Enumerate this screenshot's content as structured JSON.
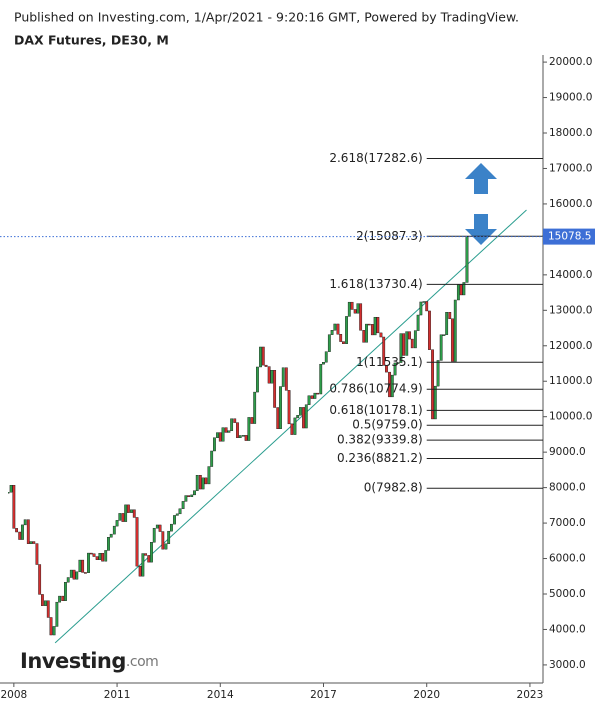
{
  "header": {
    "published": "Published on Investing.com, 1/Apr/2021 - 9:20:16 GMT, Powered by TradingView.",
    "logo_main": "Investing",
    "logo_suffix": ".com"
  },
  "chart_data": {
    "type": "candlestick",
    "title": "DAX Futures, DE30, M",
    "up_color": "#2e9d4a",
    "down_color": "#d32f2f",
    "xlim": [
      2007.83,
      2023.38
    ],
    "xticks": [
      2008,
      2011,
      2014,
      2017,
      2020,
      2023
    ],
    "ylim": [
      2490,
      20200
    ],
    "yticks": [
      {
        "value": 3000,
        "label": "3000.0"
      },
      {
        "value": 4000,
        "label": "4000.0"
      },
      {
        "value": 5000,
        "label": "5000.0"
      },
      {
        "value": 6000,
        "label": "6000.0"
      },
      {
        "value": 7000,
        "label": "7000.0"
      },
      {
        "value": 8000,
        "label": "8000.0"
      },
      {
        "value": 9000,
        "label": "9000.0"
      },
      {
        "value": 10000,
        "label": "10000.0"
      },
      {
        "value": 11000,
        "label": "11000.0"
      },
      {
        "value": 12000,
        "label": "12000.0"
      },
      {
        "value": 13000,
        "label": "13000.0"
      },
      {
        "value": 14000,
        "label": "14000.0"
      },
      {
        "value": 15000,
        "label": "15000.0"
      },
      {
        "value": 16000,
        "label": "16000.0"
      },
      {
        "value": 17000,
        "label": "17000.0"
      },
      {
        "value": 18000,
        "label": "18000.0"
      },
      {
        "value": 19000,
        "label": "19000.0"
      },
      {
        "value": 20000,
        "label": "20000.0"
      }
    ],
    "x": [
      2007.83,
      2007.92,
      2008.0,
      2008.08,
      2008.17,
      2008.25,
      2008.33,
      2008.42,
      2008.5,
      2008.58,
      2008.67,
      2008.75,
      2008.83,
      2008.92,
      2009.0,
      2009.08,
      2009.17,
      2009.25,
      2009.33,
      2009.42,
      2009.5,
      2009.58,
      2009.67,
      2009.75,
      2009.83,
      2009.92,
      2010.0,
      2010.08,
      2010.17,
      2010.25,
      2010.33,
      2010.42,
      2010.5,
      2010.58,
      2010.67,
      2010.75,
      2010.83,
      2010.92,
      2011.0,
      2011.08,
      2011.17,
      2011.25,
      2011.33,
      2011.42,
      2011.5,
      2011.58,
      2011.67,
      2011.75,
      2011.83,
      2011.92,
      2012.0,
      2012.08,
      2012.17,
      2012.25,
      2012.33,
      2012.42,
      2012.5,
      2012.58,
      2012.67,
      2012.75,
      2012.83,
      2012.92,
      2013.0,
      2013.08,
      2013.17,
      2013.25,
      2013.33,
      2013.42,
      2013.5,
      2013.58,
      2013.67,
      2013.75,
      2013.83,
      2013.92,
      2014.0,
      2014.08,
      2014.17,
      2014.25,
      2014.33,
      2014.42,
      2014.5,
      2014.58,
      2014.67,
      2014.75,
      2014.83,
      2014.92,
      2015.0,
      2015.08,
      2015.17,
      2015.25,
      2015.33,
      2015.42,
      2015.5,
      2015.58,
      2015.67,
      2015.75,
      2015.83,
      2015.92,
      2016.0,
      2016.08,
      2016.17,
      2016.25,
      2016.33,
      2016.42,
      2016.5,
      2016.58,
      2016.67,
      2016.75,
      2016.83,
      2016.92,
      2017.0,
      2017.08,
      2017.17,
      2017.25,
      2017.33,
      2017.42,
      2017.5,
      2017.58,
      2017.67,
      2017.75,
      2017.83,
      2017.92,
      2018.0,
      2018.08,
      2018.17,
      2018.25,
      2018.33,
      2018.42,
      2018.5,
      2018.58,
      2018.67,
      2018.75,
      2018.83,
      2018.92,
      2019.0,
      2019.08,
      2019.17,
      2019.25,
      2019.33,
      2019.42,
      2019.5,
      2019.58,
      2019.67,
      2019.75,
      2019.83,
      2019.92,
      2020.0,
      2020.08,
      2020.17,
      2020.25,
      2020.33,
      2020.42,
      2020.5,
      2020.58,
      2020.67,
      2020.75,
      2020.83,
      2020.92,
      2021.0,
      2021.08,
      2021.17
    ],
    "close": [
      7870,
      8067,
      6851,
      6748,
      6535,
      6949,
      7097,
      6418,
      6479,
      6422,
      5831,
      4988,
      4669,
      4810,
      4338,
      3843,
      4085,
      4770,
      4941,
      4809,
      5332,
      5465,
      5675,
      5415,
      5625,
      5957,
      5608,
      5598,
      6154,
      6136,
      6056,
      5966,
      6148,
      5925,
      6229,
      6601,
      6688,
      6914,
      7077,
      7273,
      7041,
      7514,
      7294,
      7376,
      7159,
      5785,
      5502,
      6141,
      6088,
      5898,
      6458,
      6856,
      6947,
      6761,
      6264,
      6416,
      6772,
      6970,
      7216,
      7260,
      7405,
      7612,
      7776,
      7741,
      7795,
      7914,
      8349,
      7959,
      8276,
      8104,
      8594,
      9033,
      9406,
      9552,
      9306,
      9692,
      9556,
      9603,
      9943,
      9833,
      9407,
      9470,
      9474,
      9326,
      9980,
      9806,
      10694,
      11402,
      11966,
      11454,
      11413,
      10945,
      11309,
      10259,
      9660,
      10850,
      11382,
      10743,
      9798,
      9495,
      9966,
      10039,
      10263,
      9680,
      10337,
      10593,
      10511,
      10665,
      10640,
      11481,
      11535,
      11834,
      12313,
      12438,
      12615,
      12325,
      12118,
      12056,
      12829,
      13230,
      13024,
      12918,
      13189,
      12436,
      12097,
      12612,
      12605,
      12306,
      12806,
      12364,
      12247,
      11447,
      11257,
      10559,
      11173,
      11516,
      11526,
      12344,
      11727,
      12399,
      12189,
      11939,
      12428,
      12867,
      13236,
      13249,
      12982,
      11890,
      9936,
      10862,
      11587,
      12311,
      12313,
      12945,
      12761,
      11556,
      13291,
      13719,
      13433,
      13786,
      15078.5
    ],
    "current_price": {
      "value": 15078.5,
      "label": "15078.5"
    },
    "trendline": {
      "x": [
        2009.2,
        2022.9
      ],
      "y": [
        3620,
        15828
      ]
    },
    "fib_start_x": 2020.0,
    "fib_levels": [
      {
        "value": 7982.8,
        "label": "0(7982.8)"
      },
      {
        "value": 8821.2,
        "label": "0.236(8821.2)"
      },
      {
        "value": 9339.8,
        "label": "0.382(9339.8)"
      },
      {
        "value": 9759.0,
        "label": "0.5(9759.0)"
      },
      {
        "value": 10178.1,
        "label": "0.618(10178.1)"
      },
      {
        "value": 10774.9,
        "label": "0.786(10774.9)"
      },
      {
        "value": 11535.1,
        "label": "1(11535.1)"
      },
      {
        "value": 13730.4,
        "label": "1.618(13730.4)"
      },
      {
        "value": 15087.3,
        "label": "2(15087.3)"
      },
      {
        "value": 17282.6,
        "label": "2.618(17282.6)"
      }
    ]
  }
}
